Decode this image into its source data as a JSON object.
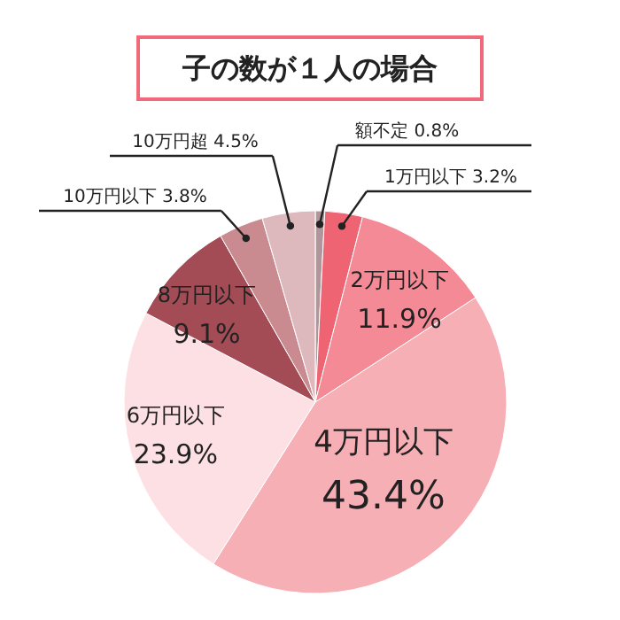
{
  "chart_data": {
    "type": "pie",
    "title": "子の数が１人の場合",
    "categories": [
      "額不定",
      "1万円以下",
      "2万円以下",
      "4万円以下",
      "6万円以下",
      "8万円以下",
      "10万円以下",
      "10万円超"
    ],
    "values": [
      0.8,
      3.2,
      11.9,
      43.4,
      23.9,
      9.1,
      3.8,
      4.5
    ],
    "value_labels": [
      "0.8%",
      "3.2%",
      "11.9%",
      "43.4%",
      "23.9%",
      "9.1%",
      "3.8%",
      "4.5%"
    ],
    "colors": [
      "#b0959a",
      "#ef6472",
      "#f48a96",
      "#f7afb6",
      "#fde0e4",
      "#a34c56",
      "#c98a90",
      "#ddb9bd"
    ]
  }
}
